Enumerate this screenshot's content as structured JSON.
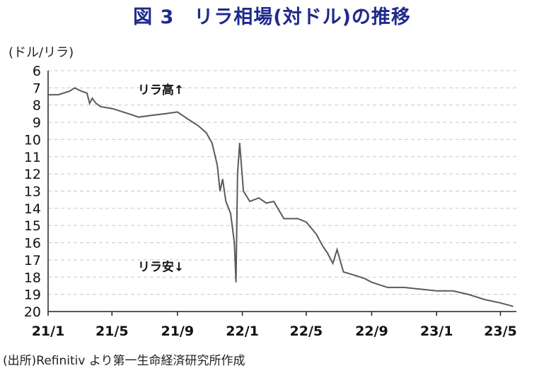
{
  "title": "図 3　リラ相場(対ドル)の推移",
  "unit_label": "(ドル/リラ)",
  "source": "(出所)Refinitiv より第一生命経済研究所作成",
  "colors": {
    "title": "#1f2a8c",
    "line": "#5a5a5a",
    "grid": "#c8c8c8"
  },
  "chart_data": {
    "type": "line",
    "title": "",
    "xlabel": "",
    "ylabel": "(ドル/リラ)",
    "y_inverted": true,
    "ylim": [
      6,
      20
    ],
    "yticks": [
      6,
      7,
      8,
      9,
      10,
      11,
      12,
      13,
      14,
      15,
      16,
      17,
      18,
      19,
      20
    ],
    "grid": "horizontal-dashed",
    "legend": "none",
    "xlim": [
      "2021-01-01",
      "2023-05-31"
    ],
    "xticks": [
      {
        "date": "2021-01-01",
        "label": "21/1"
      },
      {
        "date": "2021-05-01",
        "label": "21/5"
      },
      {
        "date": "2021-09-01",
        "label": "21/9"
      },
      {
        "date": "2022-01-01",
        "label": "22/1"
      },
      {
        "date": "2022-05-01",
        "label": "22/5"
      },
      {
        "date": "2022-09-01",
        "label": "22/9"
      },
      {
        "date": "2023-01-01",
        "label": "23/1"
      },
      {
        "date": "2023-05-01",
        "label": "23/5"
      }
    ],
    "annotations": [
      {
        "text": "リラ高↑",
        "date": "2021-08-01",
        "value": 7.1
      },
      {
        "text": "リラ安↓",
        "date": "2021-08-01",
        "value": 17.4
      }
    ],
    "series": [
      {
        "points": [
          [
            "2021-01-01",
            7.4
          ],
          [
            "2021-01-20",
            7.4
          ],
          [
            "2021-02-10",
            7.2
          ],
          [
            "2021-02-20",
            7.0
          ],
          [
            "2021-03-05",
            7.2
          ],
          [
            "2021-03-15",
            7.3
          ],
          [
            "2021-03-20",
            7.9
          ],
          [
            "2021-03-25",
            7.6
          ],
          [
            "2021-04-01",
            7.9
          ],
          [
            "2021-04-10",
            8.1
          ],
          [
            "2021-05-01",
            8.2
          ],
          [
            "2021-06-01",
            8.5
          ],
          [
            "2021-06-20",
            8.7
          ],
          [
            "2021-07-15",
            8.6
          ],
          [
            "2021-08-10",
            8.5
          ],
          [
            "2021-09-01",
            8.4
          ],
          [
            "2021-09-20",
            8.8
          ],
          [
            "2021-10-10",
            9.2
          ],
          [
            "2021-10-25",
            9.6
          ],
          [
            "2021-11-05",
            10.2
          ],
          [
            "2021-11-15",
            11.5
          ],
          [
            "2021-11-20",
            13.0
          ],
          [
            "2021-11-25",
            12.3
          ],
          [
            "2021-12-01",
            13.6
          ],
          [
            "2021-12-10",
            14.3
          ],
          [
            "2021-12-17",
            16.0
          ],
          [
            "2021-12-20",
            18.3
          ],
          [
            "2021-12-23",
            12.0
          ],
          [
            "2021-12-27",
            10.2
          ],
          [
            "2022-01-03",
            13.0
          ],
          [
            "2022-01-15",
            13.6
          ],
          [
            "2022-02-01",
            13.4
          ],
          [
            "2022-02-15",
            13.7
          ],
          [
            "2022-03-01",
            13.6
          ],
          [
            "2022-03-20",
            14.6
          ],
          [
            "2022-04-15",
            14.6
          ],
          [
            "2022-05-01",
            14.8
          ],
          [
            "2022-05-20",
            15.5
          ],
          [
            "2022-06-01",
            16.2
          ],
          [
            "2022-06-10",
            16.6
          ],
          [
            "2022-06-20",
            17.2
          ],
          [
            "2022-06-28",
            16.4
          ],
          [
            "2022-07-10",
            17.7
          ],
          [
            "2022-08-01",
            17.9
          ],
          [
            "2022-08-20",
            18.1
          ],
          [
            "2022-09-01",
            18.3
          ],
          [
            "2022-10-01",
            18.6
          ],
          [
            "2022-11-01",
            18.6
          ],
          [
            "2022-12-01",
            18.7
          ],
          [
            "2023-01-01",
            18.8
          ],
          [
            "2023-02-01",
            18.8
          ],
          [
            "2023-03-01",
            19.0
          ],
          [
            "2023-04-01",
            19.3
          ],
          [
            "2023-05-01",
            19.5
          ],
          [
            "2023-05-25",
            19.7
          ]
        ]
      }
    ]
  }
}
